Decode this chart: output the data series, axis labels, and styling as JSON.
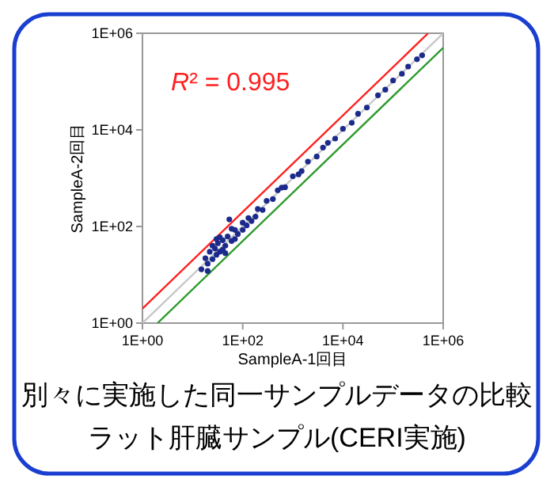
{
  "chart_data": {
    "type": "scatter",
    "log": "xy",
    "xlabel": "SampleA-1回目",
    "ylabel": "SampleA-2回目",
    "xlim": [
      1,
      1000000
    ],
    "ylim": [
      1,
      1000000
    ],
    "xticks": [
      {
        "value": 1,
        "label": "1E+00"
      },
      {
        "value": 100,
        "label": "1E+02"
      },
      {
        "value": 10000,
        "label": "1E+04"
      },
      {
        "value": 1000000,
        "label": "1E+06"
      }
    ],
    "yticks": [
      {
        "value": 1,
        "label": "1E+00"
      },
      {
        "value": 100,
        "label": "1E+02"
      },
      {
        "value": 10000,
        "label": "1E+04"
      },
      {
        "value": 1000000,
        "label": "1E+06"
      }
    ],
    "annotations": [
      "R² = 0.995",
      "別々に実施した同一サンプルデータの比較",
      "ラット肝臓サンプル(CERI実施)"
    ],
    "series": [
      {
        "type": "line",
        "color": "#c8c8c8",
        "x": [
          1,
          1000000
        ],
        "values": [
          1,
          1000000
        ]
      },
      {
        "type": "line",
        "color": "#ff2020",
        "x": [
          1,
          500000
        ],
        "values": [
          2,
          1000000
        ]
      },
      {
        "type": "line",
        "color": "#2e9a2e",
        "x": [
          2,
          1000000
        ],
        "values": [
          1,
          500000
        ]
      },
      {
        "marker": "circle",
        "color": "#1c2a8c",
        "x": [
          15,
          18,
          20,
          22,
          25,
          28,
          30,
          32,
          35,
          40,
          40,
          45,
          50,
          54,
          60,
          70,
          80,
          100,
          100,
          130,
          150,
          200,
          250,
          300,
          400,
          500,
          700,
          1000,
          1300,
          2000,
          3000,
          5000,
          7000,
          10000,
          15000,
          20000,
          30000,
          50000,
          70000,
          100000,
          150000,
          200000,
          300000,
          380000,
          25,
          20,
          30,
          45,
          35,
          60,
          70,
          120,
          180,
          600,
          1500,
          4000
        ],
        "values": [
          13,
          22,
          17,
          30,
          21,
          35,
          26,
          45,
          30,
          52,
          33,
          40,
          62,
          140,
          50,
          85,
          70,
          120,
          85,
          150,
          130,
          230,
          220,
          340,
          370,
          560,
          650,
          1100,
          1200,
          2200,
          2800,
          5400,
          6600,
          10500,
          14000,
          21500,
          29000,
          52000,
          68000,
          105000,
          145000,
          205000,
          290000,
          350000,
          40,
          12,
          55,
          28,
          60,
          90,
          55,
          105,
          160,
          640,
          1400,
          4300
        ]
      }
    ]
  }
}
